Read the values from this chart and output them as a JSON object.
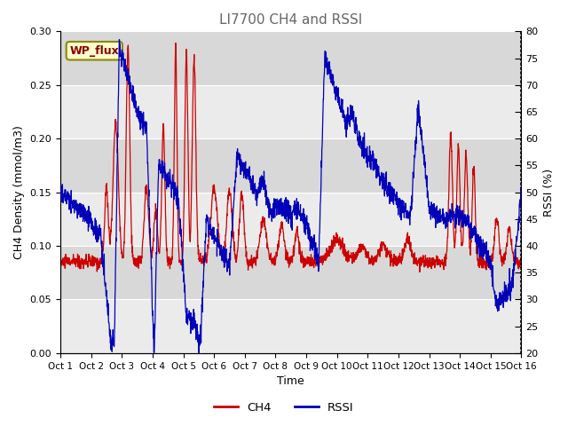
{
  "title": "LI7700 CH4 and RSSI",
  "xlabel": "Time",
  "ylabel_left": "CH4 Density (mmol/m3)",
  "ylabel_right": "RSSI (%)",
  "xlim": [
    0,
    15
  ],
  "ylim_left": [
    0.0,
    0.3
  ],
  "ylim_right": [
    20,
    80
  ],
  "yticks_left": [
    0.0,
    0.05,
    0.1,
    0.15,
    0.2,
    0.25,
    0.3
  ],
  "yticks_right": [
    20,
    25,
    30,
    35,
    40,
    45,
    50,
    55,
    60,
    65,
    70,
    75,
    80
  ],
  "xtick_labels": [
    "Oct 1",
    "Oct 2",
    "Oct 3",
    "Oct 4",
    "Oct 5",
    "Oct 6",
    "Oct 7",
    "Oct 8",
    "Oct 9",
    "Oct 10",
    "Oct 11",
    "Oct 12",
    "Oct 13",
    "Oct 14",
    "Oct 15",
    "Oct 16"
  ],
  "ch4_color": "#cc0000",
  "rssi_color": "#0000bb",
  "bg_light": "#ebebeb",
  "bg_dark": "#d8d8d8",
  "legend_label_ch4": "CH4",
  "legend_label_rssi": "RSSI",
  "annotation_text": "WP_flux",
  "title_fontsize": 11,
  "axis_fontsize": 9,
  "tick_fontsize": 8,
  "linewidth": 0.9
}
